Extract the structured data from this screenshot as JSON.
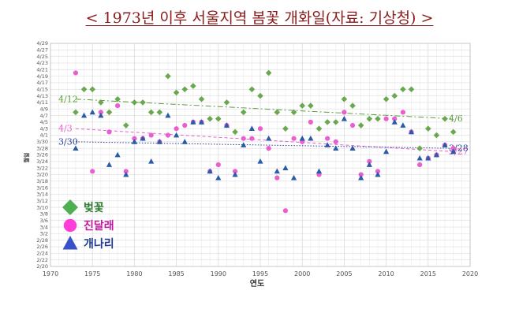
{
  "title": "< 1973년 이후 서울지역 봄꽃 개화일(자료: 기상청) >",
  "chart_data": {
    "type": "scatter",
    "xlabel": "연도",
    "ylabel": "월일",
    "xlim": [
      1970,
      2020
    ],
    "xticks": [
      1970,
      1975,
      1980,
      1985,
      1990,
      1995,
      2000,
      2005,
      2010,
      2015,
      2020
    ],
    "y_axis_type": "date (month/day)",
    "ylim": [
      "2/20",
      "4/29"
    ],
    "yticks": [
      "2/20",
      "2/22",
      "2/24",
      "2/26",
      "2/28",
      "3/2",
      "3/4",
      "3/6",
      "3/8",
      "3/10",
      "3/12",
      "3/14",
      "3/16",
      "3/18",
      "3/20",
      "3/22",
      "3/24",
      "3/26",
      "3/28",
      "3/30",
      "4/1",
      "4/3",
      "4/5",
      "4/7",
      "4/9",
      "4/11",
      "4/13",
      "4/15",
      "4/17",
      "4/19",
      "4/21",
      "4/23",
      "4/25",
      "4/27",
      "4/29"
    ],
    "grid": true,
    "legend_position": "bottom-left",
    "series": [
      {
        "name": "벚꽃",
        "marker": "diamond",
        "color": "#6aa84f",
        "points": [
          {
            "x": 1973,
            "y": "4/8"
          },
          {
            "x": 1974,
            "y": "4/15"
          },
          {
            "x": 1975,
            "y": "4/15"
          },
          {
            "x": 1976,
            "y": "4/11"
          },
          {
            "x": 1977,
            "y": "4/8"
          },
          {
            "x": 1978,
            "y": "4/12"
          },
          {
            "x": 1979,
            "y": "4/4"
          },
          {
            "x": 1980,
            "y": "4/11"
          },
          {
            "x": 1981,
            "y": "4/11"
          },
          {
            "x": 1982,
            "y": "4/8"
          },
          {
            "x": 1983,
            "y": "4/8"
          },
          {
            "x": 1984,
            "y": "4/19"
          },
          {
            "x": 1985,
            "y": "4/14"
          },
          {
            "x": 1986,
            "y": "4/15"
          },
          {
            "x": 1987,
            "y": "4/16"
          },
          {
            "x": 1988,
            "y": "4/12"
          },
          {
            "x": 1989,
            "y": "4/6"
          },
          {
            "x": 1990,
            "y": "4/6"
          },
          {
            "x": 1991,
            "y": "4/11"
          },
          {
            "x": 1992,
            "y": "4/2"
          },
          {
            "x": 1993,
            "y": "4/8"
          },
          {
            "x": 1994,
            "y": "4/15"
          },
          {
            "x": 1995,
            "y": "4/13"
          },
          {
            "x": 1996,
            "y": "4/20"
          },
          {
            "x": 1997,
            "y": "4/8"
          },
          {
            "x": 1998,
            "y": "4/3"
          },
          {
            "x": 1999,
            "y": "4/8"
          },
          {
            "x": 2000,
            "y": "4/10"
          },
          {
            "x": 2001,
            "y": "4/10"
          },
          {
            "x": 2002,
            "y": "4/3"
          },
          {
            "x": 2003,
            "y": "4/5"
          },
          {
            "x": 2004,
            "y": "4/5"
          },
          {
            "x": 2005,
            "y": "4/12"
          },
          {
            "x": 2006,
            "y": "4/10"
          },
          {
            "x": 2007,
            "y": "4/4"
          },
          {
            "x": 2008,
            "y": "4/6"
          },
          {
            "x": 2009,
            "y": "4/6"
          },
          {
            "x": 2010,
            "y": "4/12"
          },
          {
            "x": 2011,
            "y": "4/13"
          },
          {
            "x": 2012,
            "y": "4/15"
          },
          {
            "x": 2013,
            "y": "4/15"
          },
          {
            "x": 2014,
            "y": "3/28"
          },
          {
            "x": 2015,
            "y": "4/3"
          },
          {
            "x": 2016,
            "y": "4/1"
          },
          {
            "x": 2017,
            "y": "4/6"
          },
          {
            "x": 2018,
            "y": "4/2"
          }
        ],
        "trend": {
          "label": "4/12",
          "end_label": "4/6",
          "color": "#5a9e3a",
          "y_start": "4/12",
          "y_end": "4/6"
        }
      },
      {
        "name": "진달래",
        "marker": "circle",
        "color": "#ea5fcf",
        "points": [
          {
            "x": 1973,
            "y": "4/20"
          },
          {
            "x": 1975,
            "y": "3/21"
          },
          {
            "x": 1976,
            "y": "4/8"
          },
          {
            "x": 1977,
            "y": "4/2"
          },
          {
            "x": 1978,
            "y": "4/10"
          },
          {
            "x": 1979,
            "y": "3/21"
          },
          {
            "x": 1980,
            "y": "3/31"
          },
          {
            "x": 1981,
            "y": "3/31"
          },
          {
            "x": 1982,
            "y": "4/1"
          },
          {
            "x": 1983,
            "y": "3/30"
          },
          {
            "x": 1984,
            "y": "4/1"
          },
          {
            "x": 1985,
            "y": "4/3"
          },
          {
            "x": 1986,
            "y": "4/4"
          },
          {
            "x": 1987,
            "y": "4/5"
          },
          {
            "x": 1988,
            "y": "4/5"
          },
          {
            "x": 1989,
            "y": "3/21"
          },
          {
            "x": 1990,
            "y": "3/23"
          },
          {
            "x": 1991,
            "y": "4/4"
          },
          {
            "x": 1992,
            "y": "3/21"
          },
          {
            "x": 1993,
            "y": "3/31"
          },
          {
            "x": 1994,
            "y": "3/31"
          },
          {
            "x": 1995,
            "y": "4/3"
          },
          {
            "x": 1996,
            "y": "3/28"
          },
          {
            "x": 1997,
            "y": "3/19"
          },
          {
            "x": 1998,
            "y": "3/9"
          },
          {
            "x": 1999,
            "y": "3/31"
          },
          {
            "x": 2000,
            "y": "3/30"
          },
          {
            "x": 2001,
            "y": "4/5"
          },
          {
            "x": 2002,
            "y": "3/20"
          },
          {
            "x": 2003,
            "y": "3/31"
          },
          {
            "x": 2004,
            "y": "3/30"
          },
          {
            "x": 2005,
            "y": "4/8"
          },
          {
            "x": 2006,
            "y": "4/4"
          },
          {
            "x": 2007,
            "y": "3/20"
          },
          {
            "x": 2008,
            "y": "3/24"
          },
          {
            "x": 2009,
            "y": "3/21"
          },
          {
            "x": 2010,
            "y": "4/6"
          },
          {
            "x": 2011,
            "y": "4/6"
          },
          {
            "x": 2012,
            "y": "4/8"
          },
          {
            "x": 2013,
            "y": "4/2"
          },
          {
            "x": 2014,
            "y": "3/23"
          },
          {
            "x": 2015,
            "y": "3/25"
          },
          {
            "x": 2016,
            "y": "3/26"
          },
          {
            "x": 2017,
            "y": "3/29"
          },
          {
            "x": 2018,
            "y": "3/28"
          }
        ],
        "trend": {
          "label": "4/3",
          "end_label": "3/27",
          "color": "#ea5fcf",
          "y_start": "4/3",
          "y_end": "3/27"
        }
      },
      {
        "name": "개나리",
        "marker": "triangle",
        "color": "#2a5ba8",
        "points": [
          {
            "x": 1973,
            "y": "3/28"
          },
          {
            "x": 1974,
            "y": "4/7"
          },
          {
            "x": 1975,
            "y": "4/8"
          },
          {
            "x": 1976,
            "y": "4/7"
          },
          {
            "x": 1977,
            "y": "3/23"
          },
          {
            "x": 1978,
            "y": "3/26"
          },
          {
            "x": 1979,
            "y": "3/20"
          },
          {
            "x": 1980,
            "y": "3/30"
          },
          {
            "x": 1981,
            "y": "3/31"
          },
          {
            "x": 1982,
            "y": "3/24"
          },
          {
            "x": 1983,
            "y": "3/30"
          },
          {
            "x": 1984,
            "y": "4/7"
          },
          {
            "x": 1985,
            "y": "4/1"
          },
          {
            "x": 1986,
            "y": "3/30"
          },
          {
            "x": 1987,
            "y": "4/5"
          },
          {
            "x": 1988,
            "y": "4/5"
          },
          {
            "x": 1989,
            "y": "3/21"
          },
          {
            "x": 1990,
            "y": "3/19"
          },
          {
            "x": 1991,
            "y": "4/4"
          },
          {
            "x": 1992,
            "y": "3/20"
          },
          {
            "x": 1993,
            "y": "3/29"
          },
          {
            "x": 1994,
            "y": "4/3"
          },
          {
            "x": 1995,
            "y": "3/24"
          },
          {
            "x": 1996,
            "y": "3/31"
          },
          {
            "x": 1997,
            "y": "3/21"
          },
          {
            "x": 1998,
            "y": "3/22"
          },
          {
            "x": 1999,
            "y": "3/19"
          },
          {
            "x": 2000,
            "y": "3/31"
          },
          {
            "x": 2001,
            "y": "3/31"
          },
          {
            "x": 2002,
            "y": "3/21"
          },
          {
            "x": 2003,
            "y": "3/29"
          },
          {
            "x": 2004,
            "y": "3/28"
          },
          {
            "x": 2005,
            "y": "4/6"
          },
          {
            "x": 2006,
            "y": "3/28"
          },
          {
            "x": 2007,
            "y": "3/19"
          },
          {
            "x": 2008,
            "y": "3/23"
          },
          {
            "x": 2009,
            "y": "3/20"
          },
          {
            "x": 2010,
            "y": "3/27"
          },
          {
            "x": 2011,
            "y": "4/5"
          },
          {
            "x": 2012,
            "y": "4/4"
          },
          {
            "x": 2013,
            "y": "4/2"
          },
          {
            "x": 2014,
            "y": "3/25"
          },
          {
            "x": 2015,
            "y": "3/25"
          },
          {
            "x": 2016,
            "y": "3/26"
          },
          {
            "x": 2017,
            "y": "3/29"
          },
          {
            "x": 2018,
            "y": "3/27"
          }
        ],
        "trend": {
          "label": "3/30",
          "end_label": "3/28",
          "color": "#2a3f9c",
          "y_start": "3/30",
          "y_end": "3/28"
        }
      }
    ]
  }
}
